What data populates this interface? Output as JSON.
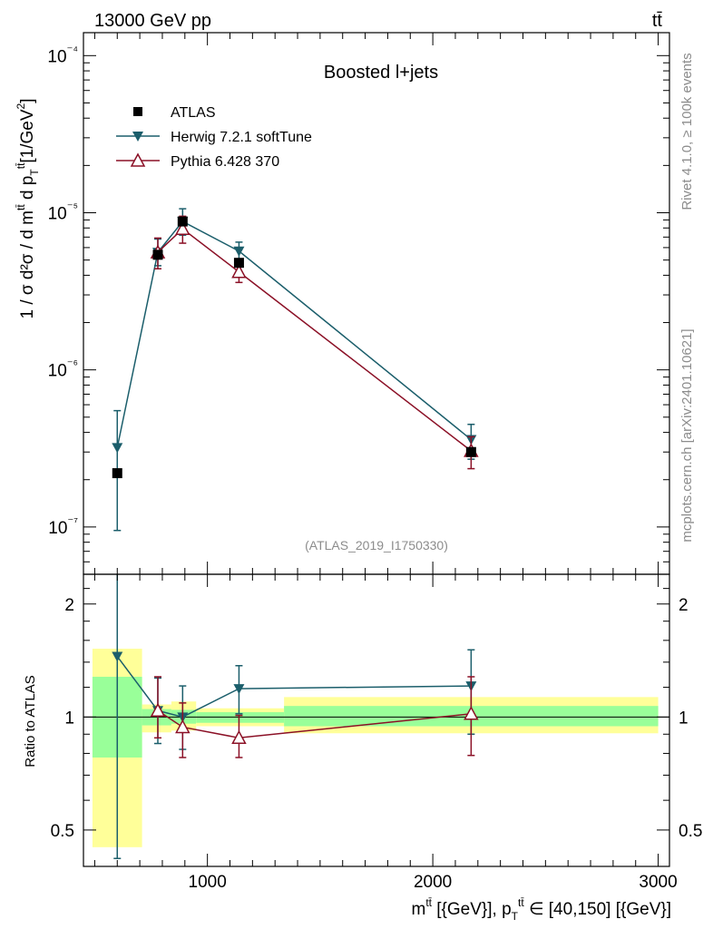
{
  "header": {
    "left": "13000 GeV pp",
    "right": "tt̄"
  },
  "side_text": {
    "rivet": "Rivet 4.1.0, ≥ 100k events",
    "mcplots": "mcplots.cern.ch [arXiv:2401.10621]"
  },
  "chart_data": [
    {
      "type": "scatter",
      "panel": "main",
      "title": "Boosted l+jets",
      "analysis_label": "(ATLAS_2019_I1750330)",
      "ylabel": "1 / σ d²σ / d m^{t̄t} d p_T^{t̄t} [1/GeV²]",
      "yscale": "log",
      "xlim": [
        450,
        3050
      ],
      "ylim": [
        5e-08,
        0.00014
      ],
      "ytick_labels": [
        "10⁻⁷",
        "10⁻⁶",
        "10⁻⁵",
        "10⁻⁴"
      ],
      "ytick_values": [
        1e-07,
        1e-06,
        1e-05,
        0.0001
      ],
      "series": [
        {
          "name": "ATLAS",
          "color": "#000000",
          "marker": "square",
          "x": [
            600,
            780,
            890,
            1140,
            2170
          ],
          "y": [
            2.2e-07,
            5.4e-06,
            8.8e-06,
            4.8e-06,
            3e-07
          ],
          "yerr_lo": [
            0,
            0,
            0,
            0,
            0
          ],
          "yerr_hi": [
            0,
            0,
            0,
            0,
            0
          ]
        },
        {
          "name": "Herwig 7.2.1 softTune",
          "color": "#1b5e6b",
          "marker": "triangle-down",
          "x": [
            600,
            780,
            890,
            1140,
            2170
          ],
          "y": [
            3.2e-07,
            5.6e-06,
            8.8e-06,
            5.7e-06,
            3.6e-07
          ],
          "yerr_lo": [
            2.25e-07,
            1e-06,
            1.6e-06,
            8e-07,
            9e-08
          ],
          "yerr_hi": [
            2.3e-07,
            1.2e-06,
            1.8e-06,
            8e-07,
            9e-08
          ]
        },
        {
          "name": "Pythia 6.428 370",
          "color": "#8b1026",
          "marker": "triangle-up",
          "x": [
            600,
            780,
            890,
            1140,
            2170
          ],
          "y": [
            null,
            5.6e-06,
            7.9e-06,
            4.2e-06,
            3.05e-07
          ],
          "yerr_lo": [
            0,
            1.2e-06,
            1.5e-06,
            6e-07,
            7e-08
          ],
          "yerr_hi": [
            0,
            1.3e-06,
            1.6e-06,
            6e-07,
            7e-08
          ]
        }
      ]
    },
    {
      "type": "scatter",
      "panel": "ratio",
      "ylabel": "Ratio to ATLAS",
      "xlabel": "m^{t̄t} [{GeV}], p_T^{t̄t} ∈ [40,150] [{GeV}]",
      "xlim": [
        450,
        3050
      ],
      "ylim": [
        0.4,
        2.4
      ],
      "yscale": "log",
      "xtick_labels": [
        "1000",
        "2000",
        "3000"
      ],
      "xtick_values": [
        1000,
        2000,
        3000
      ],
      "ytick_labels": [
        "0.5",
        "1",
        "2"
      ],
      "ytick_values": [
        0.5,
        1,
        2
      ],
      "bins": [
        {
          "lo": 490,
          "hi": 710,
          "stat_lo": 0.78,
          "stat_hi": 1.28,
          "tot_lo": 0.45,
          "tot_hi": 1.52
        },
        {
          "lo": 710,
          "hi": 840,
          "stat_lo": 0.95,
          "stat_hi": 1.05,
          "tot_lo": 0.91,
          "tot_hi": 1.08
        },
        {
          "lo": 840,
          "hi": 950,
          "stat_lo": 0.96,
          "stat_hi": 1.045,
          "tot_lo": 0.92,
          "tot_hi": 1.1
        },
        {
          "lo": 950,
          "hi": 1340,
          "stat_lo": 0.965,
          "stat_hi": 1.03,
          "tot_lo": 0.945,
          "tot_hi": 1.055
        },
        {
          "lo": 1340,
          "hi": 3000,
          "stat_lo": 0.945,
          "stat_hi": 1.07,
          "tot_lo": 0.905,
          "tot_hi": 1.13
        }
      ],
      "band_colors": {
        "total": "#ffff99",
        "stat": "#99ff99"
      },
      "series": [
        {
          "name": "Herwig 7.2.1 softTune",
          "color": "#1b5e6b",
          "marker": "triangle-down",
          "x": [
            600,
            780,
            890,
            1140,
            2170
          ],
          "y": [
            1.45,
            1.04,
            1.0,
            1.19,
            1.21
          ],
          "yerr_lo": [
            1.03,
            0.19,
            0.18,
            0.17,
            0.31
          ],
          "yerr_hi": [
            1.1,
            0.23,
            0.21,
            0.18,
            0.3
          ]
        },
        {
          "name": "Pythia 6.428 370",
          "color": "#8b1026",
          "marker": "triangle-up",
          "x": [
            780,
            890,
            1140,
            2170
          ],
          "y": [
            1.04,
            0.94,
            0.88,
            1.02
          ],
          "yerr_lo": [
            0.16,
            0.16,
            0.1,
            0.23
          ],
          "yerr_hi": [
            0.24,
            0.15,
            0.13,
            0.26
          ]
        }
      ]
    }
  ]
}
